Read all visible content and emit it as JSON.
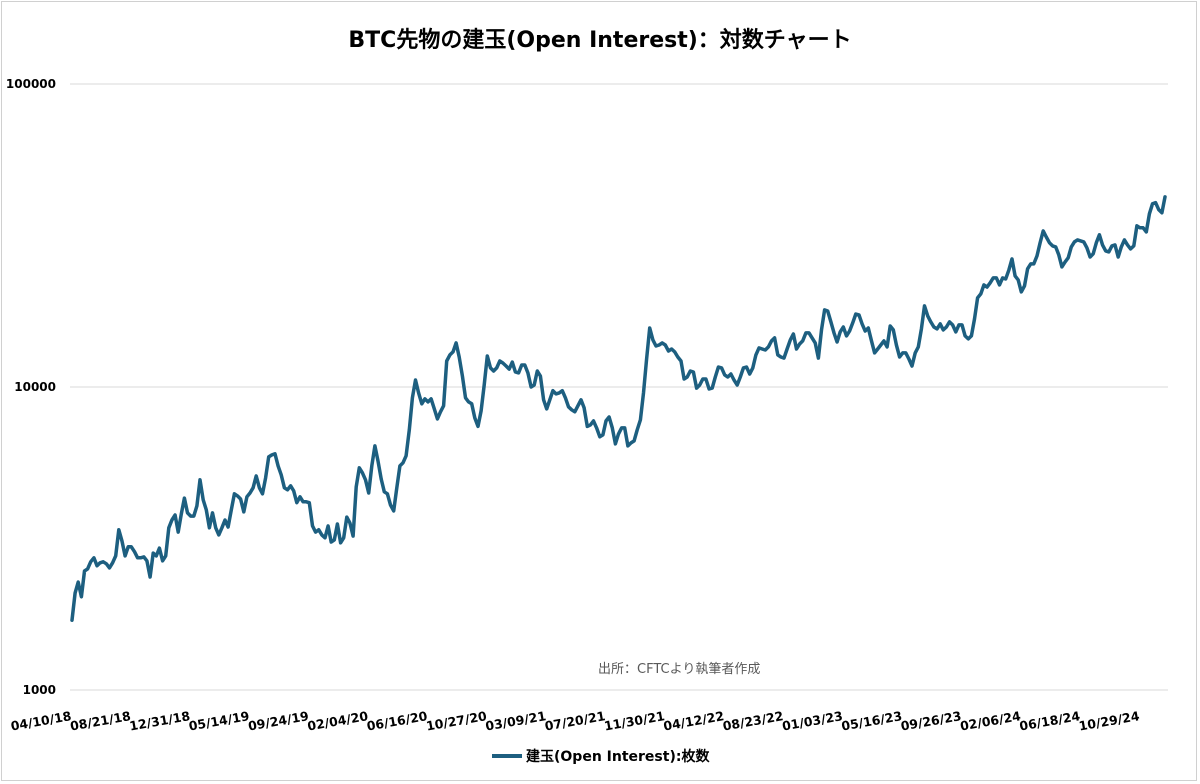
{
  "chart_data": {
    "type": "line",
    "title": "BTC先物の建玉(Open Interest)：対数チャート",
    "annotation": "出所：CFTCより執筆者作成",
    "y_scale": "log",
    "ylim": [
      1000,
      100000
    ],
    "y_ticks": [
      "100000",
      "10000",
      "1000"
    ],
    "y_tick_values": [
      100000,
      10000,
      1000
    ],
    "grid": "horizontal",
    "legend_position": "bottom",
    "x_frequency": "weekly",
    "x_start": "04/10/18",
    "x_tick_labels": [
      "04/10/18",
      "08/21/18",
      "12/31/18",
      "05/14/19",
      "09/24/19",
      "02/04/20",
      "06/16/20",
      "10/27/20",
      "03/09/21",
      "07/20/21",
      "11/30/21",
      "04/12/22",
      "08/23/22",
      "01/03/23",
      "05/16/23",
      "09/26/23",
      "02/06/24",
      "06/18/24",
      "10/29/24"
    ],
    "x_tick_every_n_points": 19,
    "series": [
      {
        "name": "建玉(Open Interest):枚数",
        "color": "#1d5f80",
        "values": [
          1700,
          2090,
          2270,
          2030,
          2470,
          2510,
          2650,
          2730,
          2570,
          2630,
          2650,
          2610,
          2530,
          2630,
          2770,
          3380,
          3100,
          2770,
          2970,
          2970,
          2860,
          2730,
          2730,
          2750,
          2670,
          2360,
          2830,
          2770,
          2940,
          2670,
          2770,
          3430,
          3640,
          3780,
          3320,
          3810,
          4300,
          3840,
          3750,
          3750,
          4050,
          4940,
          4240,
          3930,
          3430,
          3840,
          3430,
          3250,
          3430,
          3640,
          3450,
          3930,
          4440,
          4370,
          4270,
          3870,
          4340,
          4470,
          4650,
          5090,
          4650,
          4440,
          5010,
          5880,
          5970,
          6020,
          5490,
          5130,
          4650,
          4580,
          4720,
          4540,
          4150,
          4340,
          4180,
          4180,
          4150,
          3480,
          3320,
          3380,
          3250,
          3180,
          3480,
          3080,
          3130,
          3530,
          3060,
          3180,
          3720,
          3560,
          3220,
          4680,
          5410,
          5210,
          4940,
          4470,
          5490,
          6390,
          5700,
          4970,
          4510,
          4440,
          4080,
          3900,
          4650,
          5490,
          5620,
          5930,
          7220,
          9210,
          10550,
          9560,
          8800,
          9140,
          8930,
          9140,
          8470,
          7850,
          8280,
          8670,
          12180,
          12760,
          13060,
          13980,
          12560,
          10870,
          9210,
          8930,
          8800,
          7910,
          7410,
          8340,
          10150,
          12660,
          11560,
          11290,
          11560,
          12180,
          11990,
          11730,
          11460,
          12080,
          11210,
          11130,
          11820,
          11820,
          11130,
          10000,
          10150,
          11290,
          10870,
          9070,
          8470,
          9070,
          9720,
          9490,
          9560,
          9720,
          9210,
          8600,
          8410,
          8280,
          8670,
          9070,
          8540,
          7410,
          7500,
          7730,
          7330,
          6850,
          6950,
          7730,
          7960,
          7330,
          6490,
          7000,
          7330,
          7330,
          6390,
          6540,
          6640,
          7220,
          7790,
          9560,
          12370,
          15660,
          14300,
          13660,
          13760,
          13980,
          13760,
          13150,
          13350,
          13060,
          12560,
          12180,
          10630,
          10790,
          11290,
          11210,
          9920,
          10150,
          10630,
          10630,
          9850,
          9920,
          10790,
          11640,
          11560,
          10960,
          10790,
          11040,
          10550,
          10150,
          10790,
          11560,
          11640,
          11040,
          11560,
          12760,
          13460,
          13350,
          13250,
          13560,
          14190,
          14520,
          12760,
          12560,
          12460,
          13350,
          14300,
          14960,
          13350,
          13870,
          14190,
          15080,
          15080,
          14520,
          13980,
          12460,
          15430,
          17960,
          17820,
          16400,
          15080,
          14080,
          15200,
          15780,
          14740,
          15300,
          16270,
          17420,
          17290,
          16150,
          15300,
          15660,
          14190,
          12960,
          13350,
          13760,
          14190,
          13560,
          15900,
          15430,
          13760,
          12560,
          12960,
          12960,
          12370,
          11730,
          12960,
          13560,
          15550,
          18520,
          17160,
          16400,
          15780,
          15550,
          16150,
          15430,
          15780,
          16400,
          16030,
          15200,
          16030,
          16030,
          14740,
          14410,
          14740,
          16770,
          19700,
          20290,
          21720,
          21370,
          22060,
          22920,
          22920,
          21720,
          22920,
          22740,
          24350,
          26480,
          23260,
          22570,
          20600,
          21560,
          24550,
          25490,
          25490,
          27080,
          29920,
          32760,
          31270,
          29920,
          29230,
          29000,
          27290,
          24910,
          25880,
          26700,
          29000,
          30120,
          30590,
          30360,
          30120,
          28790,
          26860,
          27510,
          29920,
          31780,
          29450,
          28130,
          27920,
          29230,
          29450,
          26860,
          29000,
          30590,
          29450,
          28570,
          29230,
          34030,
          33540,
          33540,
          32510,
          37290,
          40250,
          40560,
          38440,
          37580,
          42400
        ]
      }
    ]
  }
}
